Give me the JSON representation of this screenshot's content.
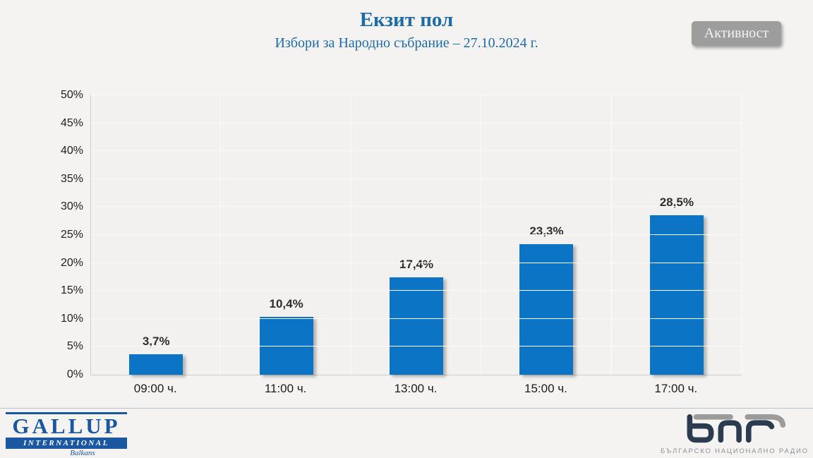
{
  "header": {
    "title": "Екзит пол",
    "subtitle": "Избори за Народно събрание – 27.10.2024 г.",
    "activity_button_label": "Активност"
  },
  "chart_data": {
    "type": "bar",
    "title": "Екзит пол",
    "subtitle": "Избори за Народно събрание – 27.10.2024 г.",
    "categories": [
      "09:00 ч.",
      "11:00 ч.",
      "13:00 ч.",
      "15:00 ч.",
      "17:00 ч."
    ],
    "values": [
      3.7,
      10.4,
      17.4,
      23.3,
      28.5
    ],
    "value_labels": [
      "3,7%",
      "10,4%",
      "17,4%",
      "23,3%",
      "28,5%"
    ],
    "xlabel": "",
    "ylabel": "",
    "ylim": [
      0,
      50
    ],
    "ytick_step": 5,
    "ytick_labels": [
      "0%",
      "5%",
      "10%",
      "15%",
      "20%",
      "25%",
      "30%",
      "35%",
      "40%",
      "45%",
      "50%"
    ],
    "grid": true,
    "legend": "none",
    "bar_color": "#0c74c4"
  },
  "footer": {
    "gallup": {
      "name": "GALLUP",
      "sub": "INTERNATIONAL",
      "region": "Balkans"
    },
    "bnr": {
      "caption": "БЪЛГАРСКО НАЦИОНАЛНО РАДИО"
    }
  },
  "colors": {
    "title_blue": "#1d6ca8",
    "bar_blue": "#0c74c4",
    "gallup_blue": "#1a57a0",
    "button_gray": "#9d9d9d",
    "background": "#f4f3f1"
  }
}
